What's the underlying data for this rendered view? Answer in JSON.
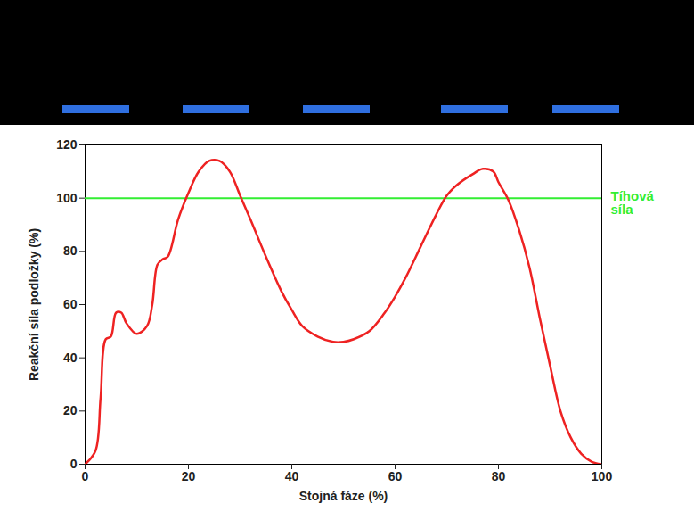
{
  "chart_data": {
    "type": "line",
    "x_label": "Stojná fáze (%)",
    "y_label": "Reakční síla podložky (%)",
    "x": [
      0,
      2,
      3,
      4,
      5,
      6,
      7,
      8,
      10,
      12,
      13,
      14,
      15,
      16,
      18,
      20,
      22,
      24,
      26,
      28,
      30,
      32,
      35,
      38,
      40,
      42,
      45,
      48,
      50,
      52,
      55,
      58,
      60,
      62,
      65,
      68,
      70,
      72,
      75,
      77,
      79,
      80,
      82,
      84,
      86,
      88,
      90,
      92,
      94,
      96,
      98,
      100
    ],
    "values": [
      0,
      5,
      25,
      47,
      48,
      57,
      57,
      53,
      49,
      52,
      60,
      75,
      77,
      78,
      92,
      102,
      110,
      114,
      114,
      110,
      101,
      92,
      78,
      65,
      58,
      52,
      48,
      46,
      46,
      47,
      50,
      57,
      63,
      70,
      82,
      94,
      101,
      105,
      109,
      111,
      110,
      106,
      99,
      88,
      74,
      55,
      37,
      20,
      10,
      4,
      1,
      0
    ],
    "color": "#ee2222",
    "xlim": [
      0,
      100
    ],
    "xticks": [
      0,
      20,
      40,
      60,
      80,
      100
    ],
    "ylim": [
      0,
      120
    ],
    "yticks": [
      0,
      20,
      40,
      60,
      80,
      100,
      120
    ],
    "grid": false,
    "annotations": [
      {
        "text": "Tíhová síla",
        "y": 100,
        "color": "#33ee33"
      }
    ]
  }
}
